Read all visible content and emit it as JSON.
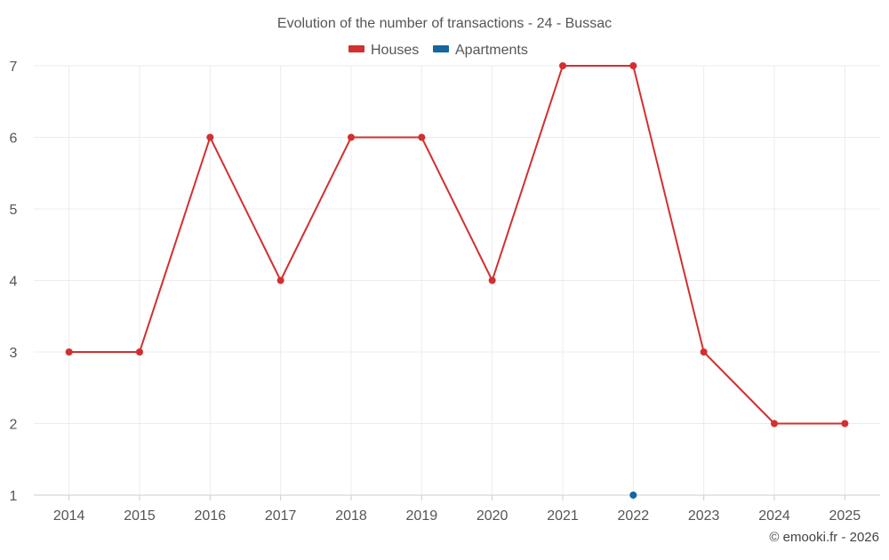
{
  "chart_data": {
    "type": "line",
    "title": "Evolution of the number of transactions - 24 - Bussac",
    "x": [
      "2014",
      "2015",
      "2016",
      "2017",
      "2018",
      "2019",
      "2020",
      "2021",
      "2022",
      "2023",
      "2024",
      "2025"
    ],
    "yticks": [
      "1",
      "2",
      "3",
      "4",
      "5",
      "6",
      "7"
    ],
    "ylim": [
      1,
      7
    ],
    "grid": true,
    "legend_position": "top-center",
    "series": [
      {
        "name": "Houses",
        "color": "#d32f2f",
        "values": [
          3,
          3,
          6,
          4,
          6,
          6,
          4,
          7,
          7,
          3,
          2,
          2
        ]
      },
      {
        "name": "Apartments",
        "color": "#1565a0",
        "values": [
          null,
          null,
          null,
          null,
          null,
          null,
          null,
          null,
          1,
          null,
          null,
          null
        ]
      }
    ],
    "credit": "© emooki.fr - 2026"
  }
}
